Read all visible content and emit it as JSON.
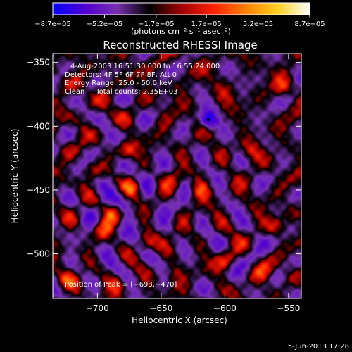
{
  "chart_data": {
    "type": "heatmap",
    "title": "Reconstructed RHESSI Image",
    "xlabel": "Heliocentric X (arcsec)",
    "ylabel": "Heliocentric Y (arcsec)",
    "xlim": [
      -735,
      -540
    ],
    "ylim": [
      -535,
      -343
    ],
    "x_ticks": [
      -700,
      -650,
      -600,
      -550
    ],
    "y_ticks": [
      -350,
      -400,
      -450,
      -500
    ],
    "x_tick_labels": [
      "−700",
      "−650",
      "−600",
      "−550"
    ],
    "y_tick_labels": [
      "−350",
      "−400",
      "−450",
      "−500"
    ],
    "colorbar": {
      "range": [
        -8.7e-05,
        8.7e-05
      ],
      "tick_values": [
        -8.7e-05,
        -5.2e-05,
        -1.7e-05,
        1.7e-05,
        5.2e-05,
        8.7e-05
      ],
      "tick_labels": [
        "−8.7e−05",
        "−5.2e−05",
        "−1.7e−05",
        "1.7e−05",
        "5.2e−05",
        "8.7e−05"
      ],
      "unit_label": "(photons cm⁻² s⁻¹ asec⁻²)",
      "colors": [
        "#0000ff",
        "#5000d0",
        "#7830b0",
        "#000000",
        "#a00000",
        "#ff2000",
        "#ff8000",
        "#ffd020",
        "#ffffff"
      ]
    },
    "annotations": [
      "4-Aug-2003 16:51:30.000 to 16:55:24.000",
      "Detectors: 4F 5F 6F 7F 8F, Att 0",
      "Energy Range: 25.0 - 50.0 keV",
      "Clean     Total counts: 2.35E+03"
    ],
    "peak_label": "Position of Peak = [−693,−470]",
    "min_marker": {
      "x": -613,
      "y": -395
    },
    "bright_sources": [
      {
        "x": -676,
        "y": -418,
        "rel": 1.0
      },
      {
        "x": -672,
        "y": -448,
        "rel": 1.0
      },
      {
        "x": -688,
        "y": -468,
        "rel": 0.95
      },
      {
        "x": -620,
        "y": -450,
        "rel": 0.85
      },
      {
        "x": -696,
        "y": -480,
        "rel": 0.8
      },
      {
        "x": -662,
        "y": -492,
        "rel": 0.8
      },
      {
        "x": -705,
        "y": -435,
        "rel": 0.55
      },
      {
        "x": -640,
        "y": -440,
        "rel": 0.55
      },
      {
        "x": -555,
        "y": -370,
        "rel": 0.75
      },
      {
        "x": -580,
        "y": -420,
        "rel": 0.6
      },
      {
        "x": -560,
        "y": -478,
        "rel": 0.45
      },
      {
        "x": -600,
        "y": -505,
        "rel": 0.75
      },
      {
        "x": -570,
        "y": -515,
        "rel": 0.5
      },
      {
        "x": -640,
        "y": -515,
        "rel": 0.6
      },
      {
        "x": -725,
        "y": -520,
        "rel": 0.65
      },
      {
        "x": -685,
        "y": -525,
        "rel": 0.6
      },
      {
        "x": -600,
        "y": -375,
        "rel": 0.3
      }
    ]
  },
  "footer": {
    "date": "5-Jun-2013 17:28"
  }
}
